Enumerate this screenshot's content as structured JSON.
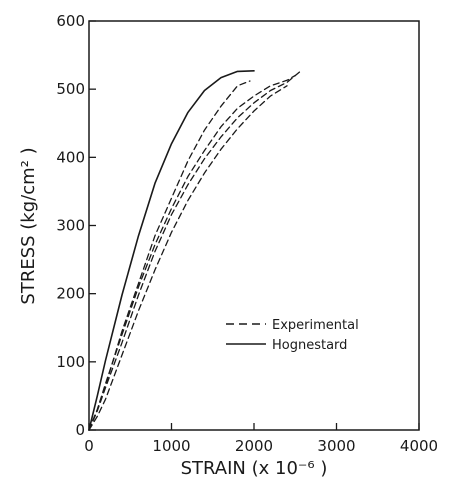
{
  "chart_data": {
    "type": "line",
    "xlabel": "STRAIN  (x  10⁻⁶ )",
    "ylabel": "STRESS  (kg/cm² )",
    "xlim": [
      0,
      4000
    ],
    "ylim": [
      0,
      600
    ],
    "xticks": [
      "0",
      "1000",
      "2000",
      "3000",
      "4000"
    ],
    "yticks": [
      "0",
      "100",
      "200",
      "300",
      "400",
      "500",
      "600"
    ],
    "grid": false,
    "legend": {
      "placement": "center-right",
      "entries": [
        {
          "label": "Experimental",
          "style": "dashed"
        },
        {
          "label": "Hognestard",
          "style": "solid"
        }
      ]
    },
    "series": [
      {
        "name": "Hognestard",
        "style": "solid",
        "x": [
          0,
          100,
          200,
          400,
          600,
          800,
          1000,
          1200,
          1400,
          1600,
          1800,
          2000
        ],
        "y": [
          0,
          50,
          102,
          198,
          285,
          362,
          420,
          466,
          498,
          517,
          526,
          527
        ]
      },
      {
        "style": "dashed",
        "x": [
          0,
          100,
          200,
          400,
          600,
          800,
          1000,
          1200,
          1400,
          1600,
          1800,
          1950
        ],
        "y": [
          0,
          30,
          65,
          145,
          215,
          285,
          340,
          395,
          440,
          475,
          505,
          512
        ]
      },
      {
        "style": "dashed",
        "x": [
          0,
          100,
          200,
          400,
          600,
          800,
          1000,
          1200,
          1400,
          1600,
          1800,
          2000,
          2200,
          2400,
          2500
        ],
        "y": [
          0,
          30,
          68,
          140,
          210,
          272,
          325,
          372,
          410,
          445,
          472,
          490,
          505,
          513,
          520
        ]
      },
      {
        "style": "dashed",
        "x": [
          0,
          100,
          200,
          400,
          600,
          800,
          1000,
          1200,
          1400,
          1600,
          1800,
          2000,
          2200,
          2400,
          2550
        ],
        "y": [
          0,
          28,
          62,
          128,
          198,
          262,
          316,
          360,
          398,
          430,
          458,
          480,
          498,
          510,
          525
        ]
      },
      {
        "style": "dashed",
        "x": [
          0,
          100,
          200,
          400,
          600,
          800,
          1000,
          1200,
          1400,
          1600,
          1800,
          2000,
          2200,
          2400
        ],
        "y": [
          0,
          20,
          45,
          110,
          175,
          235,
          290,
          337,
          377,
          412,
          442,
          468,
          490,
          505
        ]
      }
    ]
  }
}
